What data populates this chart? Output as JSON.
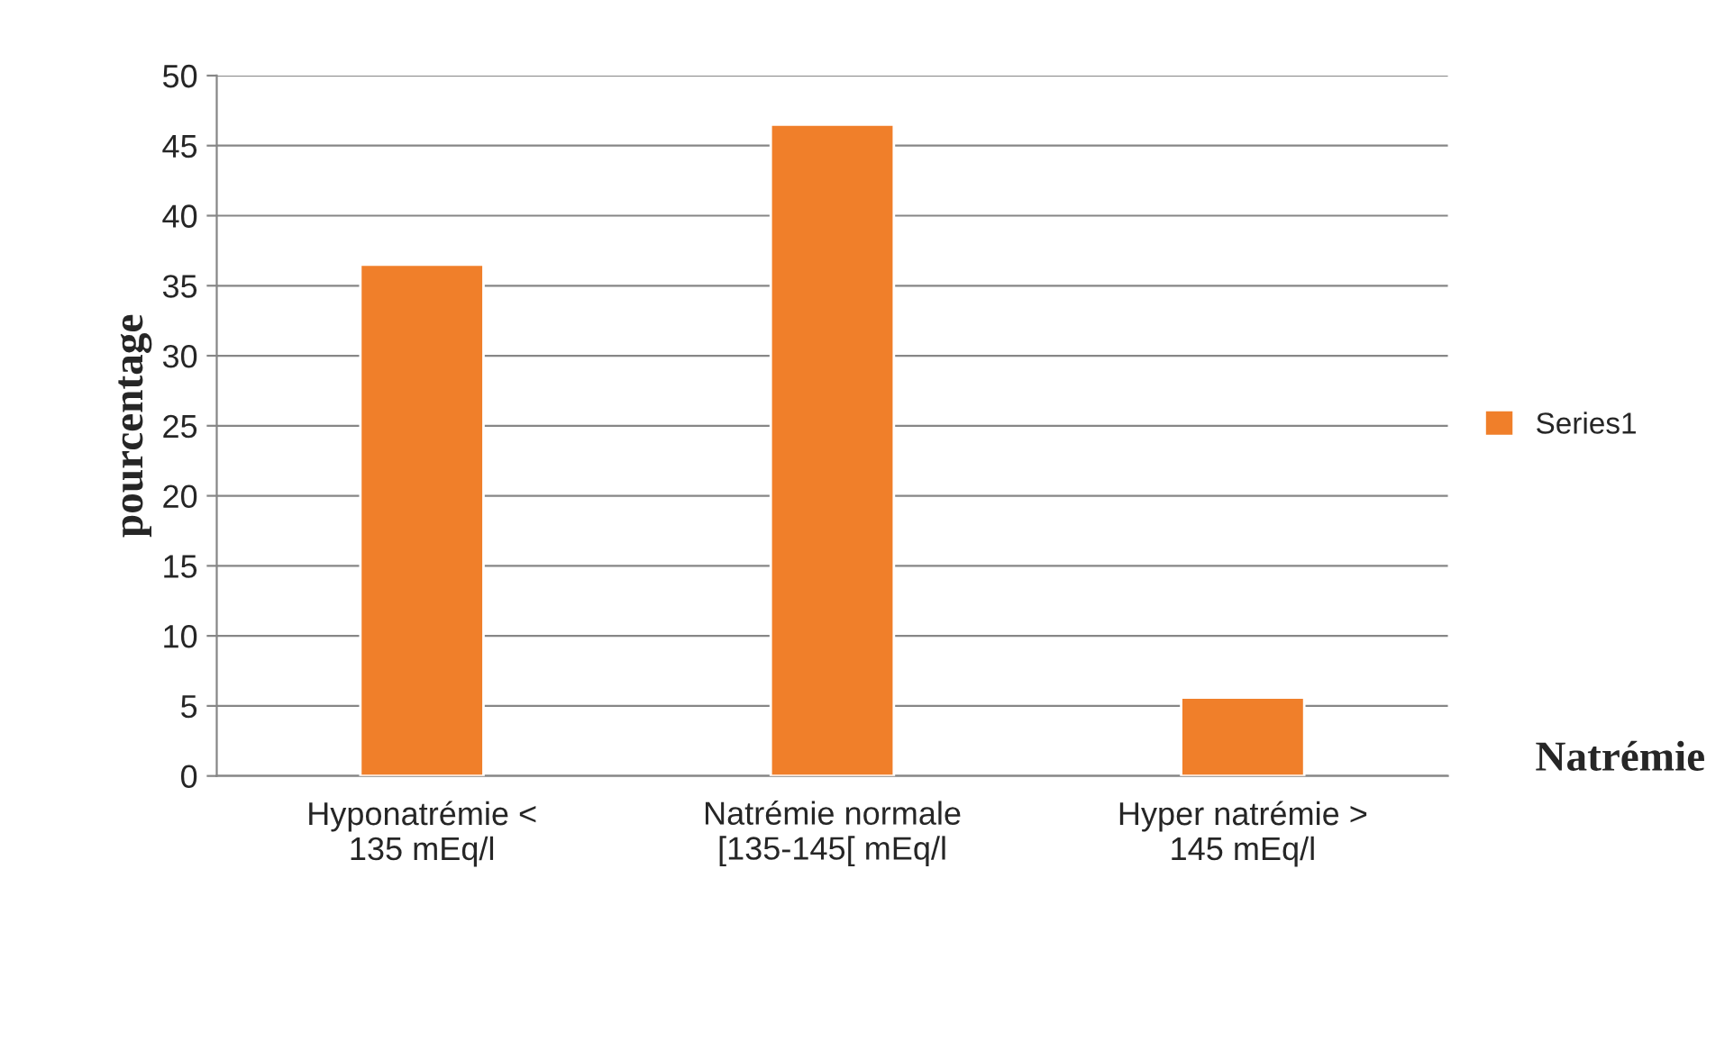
{
  "chart_data": {
    "type": "bar",
    "xlabel": "Natrémie",
    "ylabel": "pourcentage",
    "categories": [
      "Hyponatrémie <\n135 mEq/l",
      "Natrémie normale\n[135-145[ mEq/l",
      "Hyper natrémie >\n145 mEq/l"
    ],
    "series": [
      {
        "name": "Series1",
        "color": "#f07f2a",
        "values": [
          36.5,
          46.5,
          5.6
        ]
      }
    ],
    "ylim": [
      0,
      50
    ],
    "yticks": [
      0,
      5,
      10,
      15,
      20,
      25,
      30,
      35,
      40,
      45,
      50
    ],
    "grid": "y",
    "legend": "right"
  }
}
